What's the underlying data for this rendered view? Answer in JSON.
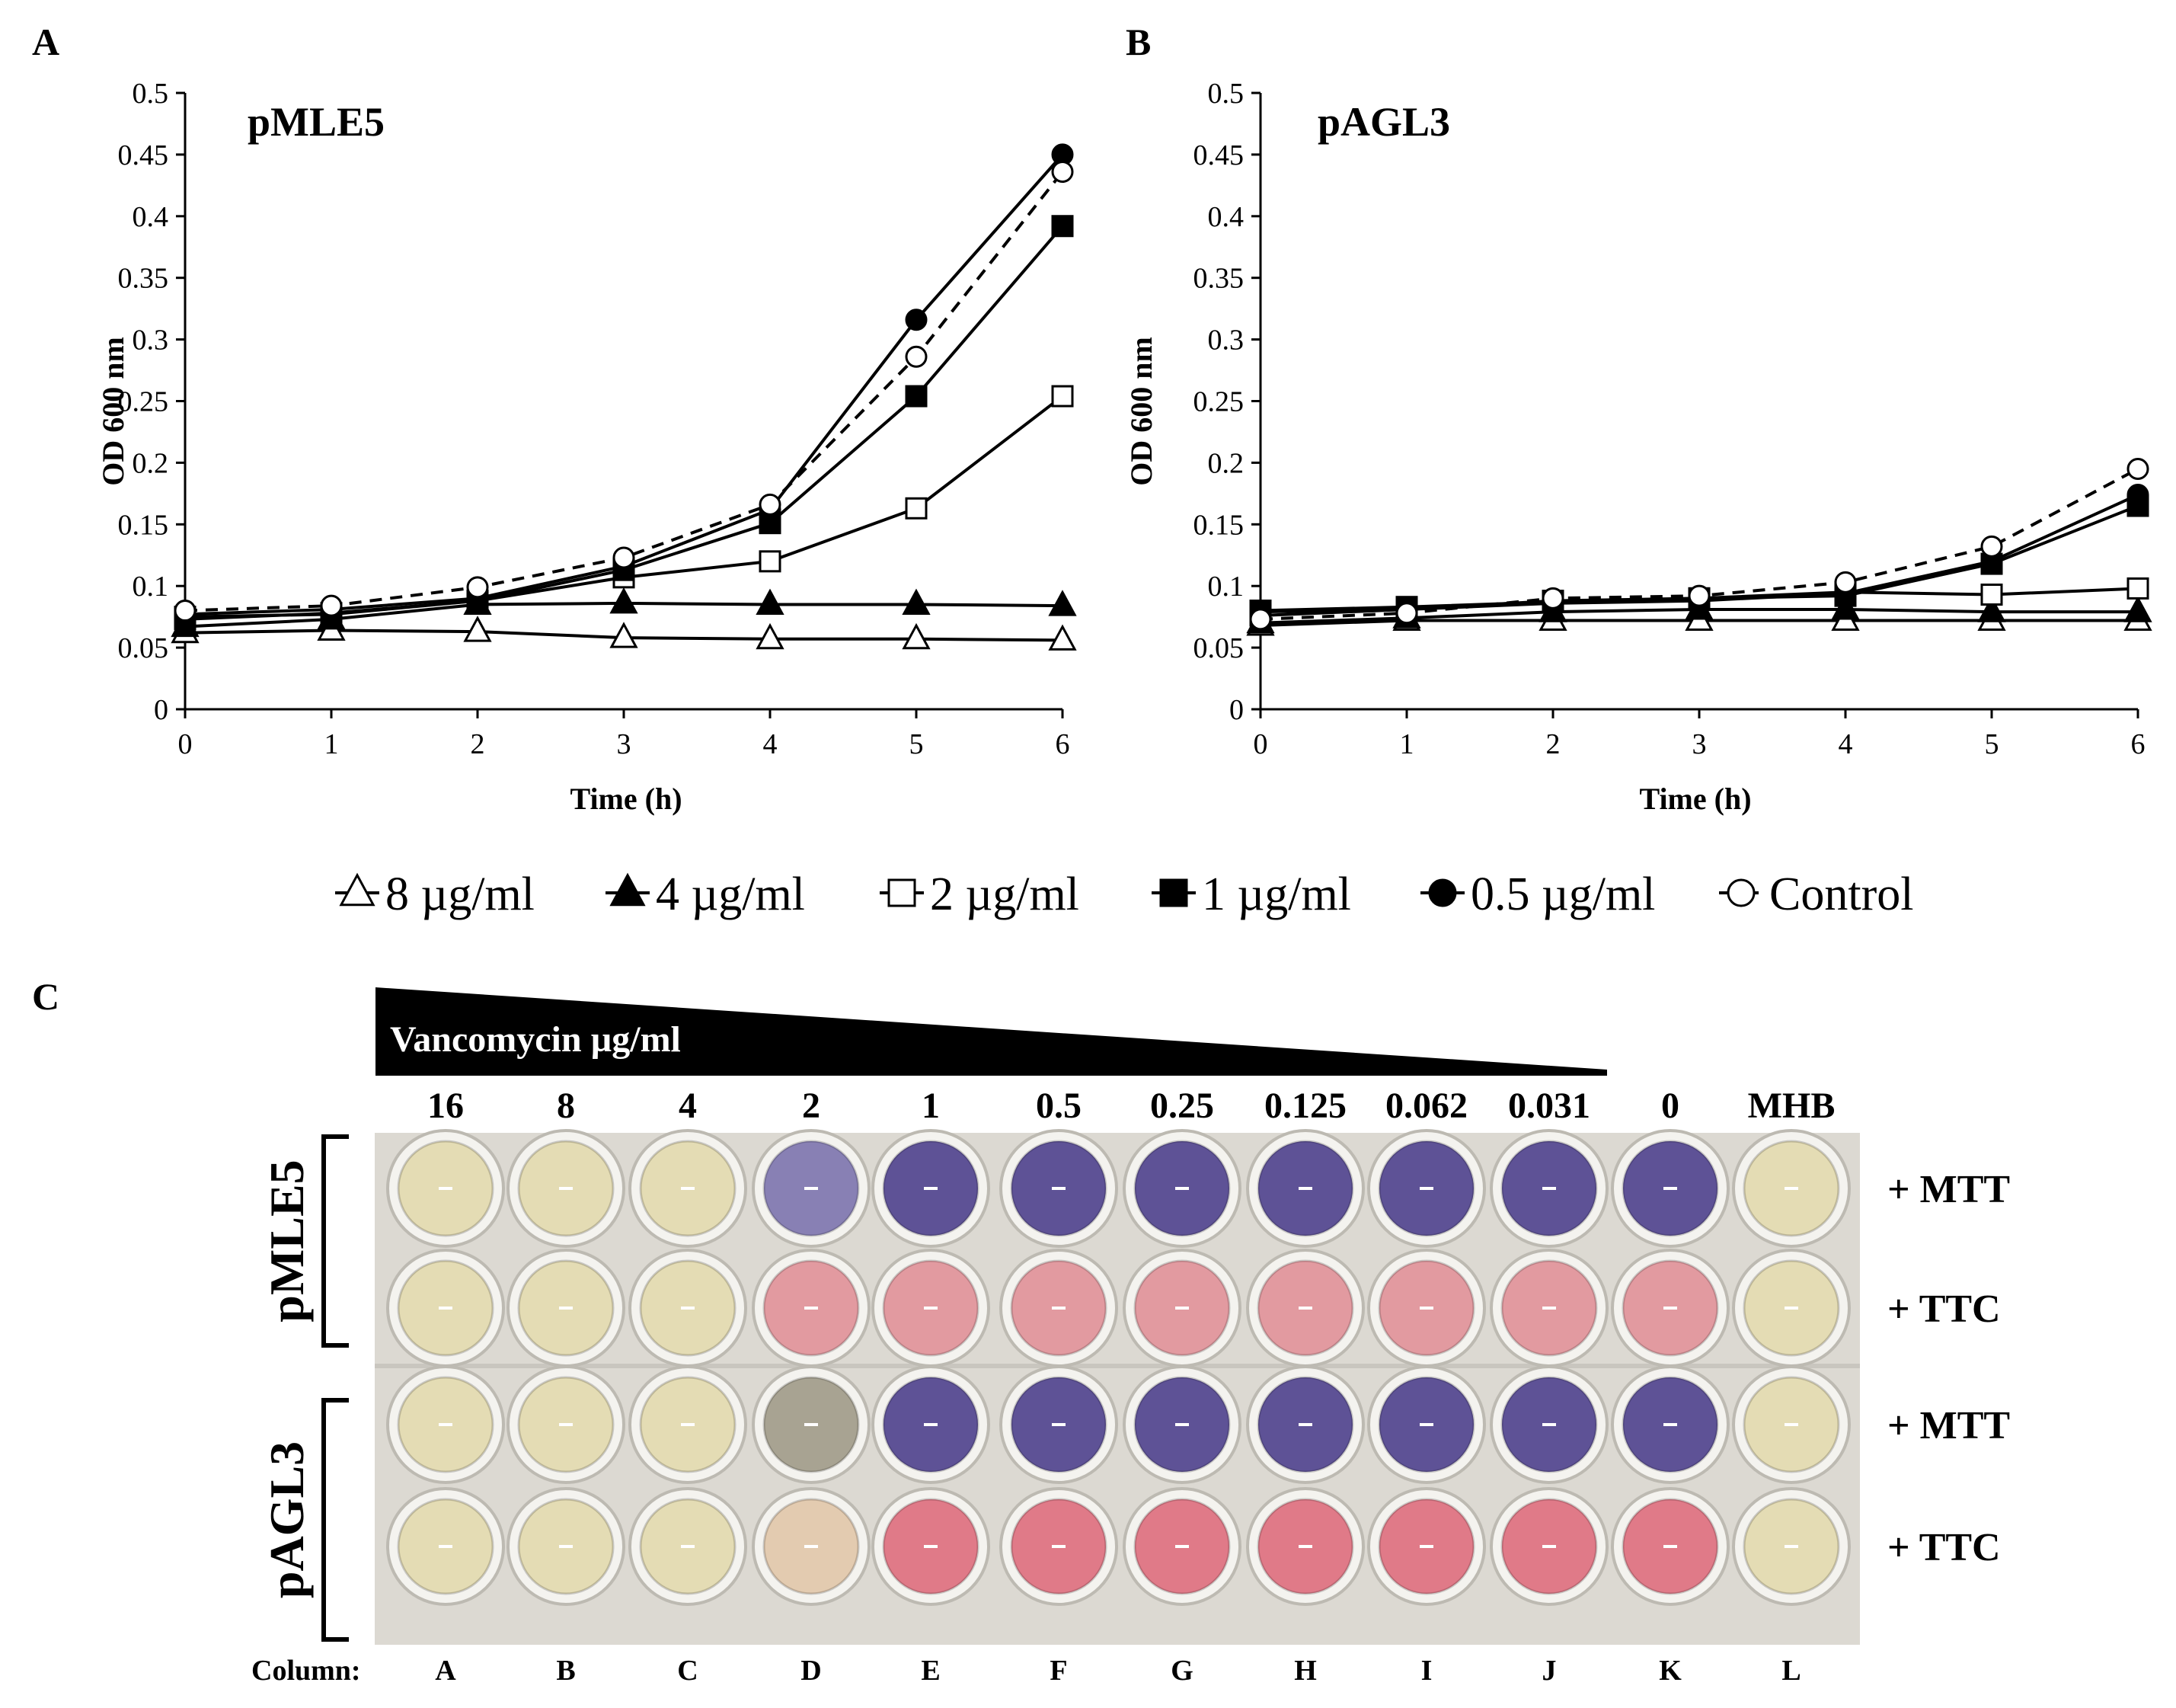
{
  "chart_data": [
    {
      "type": "line",
      "panel": "A",
      "title": "pMLE5",
      "xlabel": "Time (h)",
      "ylabel": "OD 600 nm",
      "x": [
        0,
        1,
        2,
        3,
        4,
        5,
        6
      ],
      "xticks": [
        "0",
        "1",
        "2",
        "3",
        "4",
        "5",
        "6"
      ],
      "ylim": [
        0,
        0.5
      ],
      "yticks": [
        "0",
        "0.05",
        "0.1",
        "0.15",
        "0.2",
        "0.25",
        "0.3",
        "0.35",
        "0.4",
        "0.45",
        "0.5"
      ],
      "series": [
        {
          "name": "8 µg/ml",
          "values": [
            0.062,
            0.064,
            0.063,
            0.058,
            0.057,
            0.057,
            0.056
          ]
        },
        {
          "name": "4 µg/ml",
          "values": [
            0.067,
            0.073,
            0.085,
            0.086,
            0.085,
            0.085,
            0.084
          ]
        },
        {
          "name": "2 µg/ml",
          "values": [
            0.075,
            0.077,
            0.088,
            0.107,
            0.12,
            0.163,
            0.254
          ]
        },
        {
          "name": "1 µg/ml",
          "values": [
            0.073,
            0.078,
            0.088,
            0.113,
            0.151,
            0.254,
            0.392
          ]
        },
        {
          "name": "0.5 µg/ml",
          "values": [
            0.077,
            0.081,
            0.09,
            0.116,
            0.162,
            0.316,
            0.45
          ]
        },
        {
          "name": "Control",
          "values": [
            0.08,
            0.084,
            0.099,
            0.123,
            0.166,
            0.286,
            0.436
          ]
        }
      ]
    },
    {
      "type": "line",
      "panel": "B",
      "title": "pAGL3",
      "xlabel": "Time (h)",
      "ylabel": "OD 600 nm",
      "x": [
        0,
        1,
        2,
        3,
        4,
        5,
        6
      ],
      "xticks": [
        "0",
        "1",
        "2",
        "3",
        "4",
        "5",
        "6"
      ],
      "ylim": [
        0,
        0.5
      ],
      "yticks": [
        "0",
        "0.05",
        "0.1",
        "0.15",
        "0.2",
        "0.25",
        "0.3",
        "0.35",
        "0.4",
        "0.45",
        "0.5"
      ],
      "series": [
        {
          "name": "8 µg/ml",
          "values": [
            0.068,
            0.072,
            0.072,
            0.072,
            0.072,
            0.072,
            0.072
          ]
        },
        {
          "name": "4 µg/ml",
          "values": [
            0.07,
            0.074,
            0.079,
            0.081,
            0.081,
            0.079,
            0.079
          ]
        },
        {
          "name": "2 µg/ml",
          "values": [
            0.076,
            0.081,
            0.088,
            0.09,
            0.095,
            0.093,
            0.098
          ]
        },
        {
          "name": "1 µg/ml",
          "values": [
            0.08,
            0.083,
            0.087,
            0.09,
            0.092,
            0.118,
            0.165
          ]
        },
        {
          "name": "0.5 µg/ml",
          "values": [
            0.079,
            0.081,
            0.086,
            0.088,
            0.094,
            0.12,
            0.174
          ]
        },
        {
          "name": "Control",
          "values": [
            0.073,
            0.078,
            0.09,
            0.092,
            0.103,
            0.132,
            0.195
          ]
        }
      ]
    }
  ],
  "legend": [
    {
      "label": "8 µg/ml",
      "marker": "triangle",
      "filled": false,
      "dashed": false
    },
    {
      "label": "4 µg/ml",
      "marker": "triangle",
      "filled": true,
      "dashed": false
    },
    {
      "label": "2 µg/ml",
      "marker": "square",
      "filled": false,
      "dashed": false
    },
    {
      "label": "1 µg/ml",
      "marker": "square",
      "filled": true,
      "dashed": false
    },
    {
      "label": "0.5 µg/ml",
      "marker": "circle",
      "filled": true,
      "dashed": false
    },
    {
      "label": "Control",
      "marker": "circle",
      "filled": false,
      "dashed": true
    }
  ],
  "plate": {
    "panel": "C",
    "gradient_label": "Vancomycin µg/ml",
    "concentrations": [
      "16",
      "8",
      "4",
      "2",
      "1",
      "0.5",
      "0.25",
      "0.125",
      "0.062",
      "0.031",
      "0",
      "MHB"
    ],
    "column_prefix": "Column:",
    "columns": [
      "A",
      "B",
      "C",
      "D",
      "E",
      "F",
      "G",
      "H",
      "I",
      "J",
      "K",
      "L"
    ],
    "strains": [
      "pMLE5",
      "pAGL3"
    ],
    "row_labels": [
      "+ MTT",
      "+ TTC",
      "+ MTT",
      "+ TTC"
    ],
    "colors": {
      "clear": "#e4dcb4",
      "mtt": "#5e5296",
      "mtt_light": "#8880b4",
      "ttc": "#e29aa0",
      "ttc_deep": "#e07a88",
      "grey": "#a8a392",
      "beige": "#e3cbb0",
      "plate_bg": "#dcd9d2"
    },
    "wells": [
      [
        "clear",
        "clear",
        "clear",
        "mtt_light",
        "mtt",
        "mtt",
        "mtt",
        "mtt",
        "mtt",
        "mtt",
        "mtt",
        "clear"
      ],
      [
        "clear",
        "clear",
        "clear",
        "ttc",
        "ttc",
        "ttc",
        "ttc",
        "ttc",
        "ttc",
        "ttc",
        "ttc",
        "clear"
      ],
      [
        "clear",
        "clear",
        "clear",
        "grey",
        "mtt",
        "mtt",
        "mtt",
        "mtt",
        "mtt",
        "mtt",
        "mtt",
        "clear"
      ],
      [
        "clear",
        "clear",
        "clear",
        "beige",
        "ttc_deep",
        "ttc_deep",
        "ttc_deep",
        "ttc_deep",
        "ttc_deep",
        "ttc_deep",
        "ttc_deep",
        "clear"
      ]
    ]
  }
}
